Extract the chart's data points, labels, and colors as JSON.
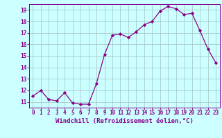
{
  "x": [
    0,
    1,
    2,
    3,
    4,
    5,
    6,
    7,
    8,
    9,
    10,
    11,
    12,
    13,
    14,
    15,
    16,
    17,
    18,
    19,
    20,
    21,
    22,
    23
  ],
  "y": [
    11.5,
    12.0,
    11.2,
    11.1,
    11.8,
    10.9,
    10.8,
    10.8,
    12.6,
    15.1,
    16.8,
    16.9,
    16.6,
    17.1,
    17.7,
    18.0,
    18.9,
    19.3,
    19.1,
    18.6,
    18.7,
    17.2,
    15.6,
    14.4
  ],
  "line_color": "#880088",
  "marker_color": "#880088",
  "bg_color": "#ccffff",
  "grid_color": "#aacccc",
  "xlabel": "Windchill (Refroidissement éolien,°C)",
  "xlim": [
    -0.5,
    23.5
  ],
  "ylim": [
    10.5,
    19.5
  ],
  "yticks": [
    11,
    12,
    13,
    14,
    15,
    16,
    17,
    18,
    19
  ],
  "xticks": [
    0,
    1,
    2,
    3,
    4,
    5,
    6,
    7,
    8,
    9,
    10,
    11,
    12,
    13,
    14,
    15,
    16,
    17,
    18,
    19,
    20,
    21,
    22,
    23
  ],
  "font_color": "#880088",
  "label_fontsize": 6.5,
  "tick_fontsize": 5.5
}
